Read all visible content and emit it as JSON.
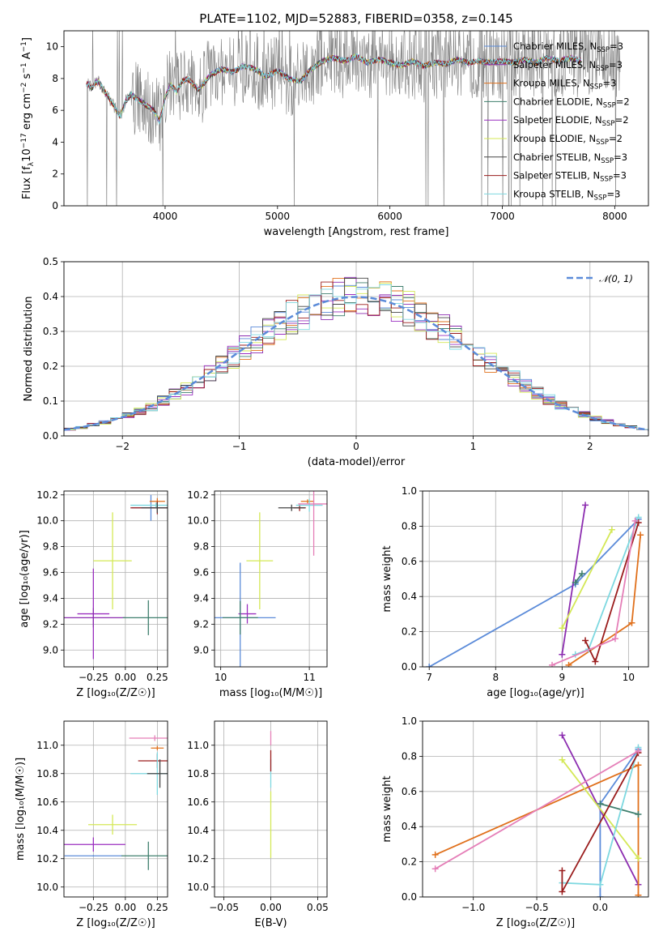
{
  "title": "PLATE=1102, MJD=52883, FIBERID=0358, z=0.145",
  "colors": {
    "Chabrier MILES": "#5b8bd9",
    "Salpeter MILES": "#8c2db0",
    "Kroupa MILES": "#e0701c",
    "Chabrier ELODIE": "#3f7f6e",
    "Salpeter ELODIE": "#9b30c0",
    "Kroupa ELODIE": "#d4e856",
    "Chabrier STELIB": "#444444",
    "Salpeter STELIB": "#9a1c1c",
    "Kroupa STELIB": "#7dd8e0",
    "data": "#808080",
    "normal": "#5b8bd9",
    "extra_pink": "#e57fb8"
  },
  "legend_entries": [
    {
      "name": "Chabrier MILES",
      "label": "Chabrier MILES, N",
      "sub": "SSP",
      "tail": "=3"
    },
    {
      "name": "Salpeter MILES",
      "label": "Salpeter MILES, N",
      "sub": "SSP",
      "tail": "=3"
    },
    {
      "name": "Kroupa MILES",
      "label": "Kroupa MILES, N",
      "sub": "SSP",
      "tail": "=3"
    },
    {
      "name": "Chabrier ELODIE",
      "label": "Chabrier ELODIE, N",
      "sub": "SSP",
      "tail": "=2"
    },
    {
      "name": "Salpeter ELODIE",
      "label": "Salpeter ELODIE, N",
      "sub": "SSP",
      "tail": "=2"
    },
    {
      "name": "Kroupa ELODIE",
      "label": "Kroupa ELODIE, N",
      "sub": "SSP",
      "tail": "=2"
    },
    {
      "name": "Chabrier STELIB",
      "label": "Chabrier STELIB, N",
      "sub": "SSP",
      "tail": "=3"
    },
    {
      "name": "Salpeter STELIB",
      "label": "Salpeter STELIB, N",
      "sub": "SSP",
      "tail": "=3"
    },
    {
      "name": "Kroupa STELIB",
      "label": "Kroupa STELIB, N",
      "sub": "SSP",
      "tail": "=3"
    }
  ],
  "chart_data": [
    {
      "id": "spectrum",
      "type": "line",
      "xlabel": "wavelength [Angstrom, rest frame]",
      "ylabel_main": "Flux [f",
      "ylabel_sub": "λ",
      "ylabel_rest": "10",
      "ylabel_sup1": "−17",
      "ylabel_mid": " erg cm",
      "ylabel_sup2": "−2",
      "ylabel_mid2": " s",
      "ylabel_sup3": "−1",
      "ylabel_end": " A",
      "ylabel_sup4": "−1",
      "ylabel_close": "]",
      "xlim": [
        3100,
        8300
      ],
      "ylim": [
        0,
        11
      ],
      "xticks": [
        4000,
        5000,
        6000,
        7000,
        8000
      ],
      "yticks": [
        0,
        2,
        4,
        6,
        8,
        10
      ],
      "model_continuum": [
        [
          3300,
          7.7
        ],
        [
          3350,
          7.4
        ],
        [
          3400,
          7.9
        ],
        [
          3450,
          7.3
        ],
        [
          3500,
          6.8
        ],
        [
          3550,
          6.2
        ],
        [
          3600,
          5.6
        ],
        [
          3650,
          6.6
        ],
        [
          3700,
          7.0
        ],
        [
          3750,
          6.7
        ],
        [
          3800,
          6.5
        ],
        [
          3850,
          6.2
        ],
        [
          3900,
          6.0
        ],
        [
          3950,
          5.3
        ],
        [
          4000,
          6.8
        ],
        [
          4050,
          7.6
        ],
        [
          4100,
          7.2
        ],
        [
          4150,
          7.8
        ],
        [
          4200,
          8.0
        ],
        [
          4300,
          7.3
        ],
        [
          4400,
          8.2
        ],
        [
          4500,
          8.6
        ],
        [
          4600,
          8.4
        ],
        [
          4700,
          8.8
        ],
        [
          4800,
          8.6
        ],
        [
          4900,
          8.1
        ],
        [
          5000,
          8.5
        ],
        [
          5100,
          8.0
        ],
        [
          5200,
          7.8
        ],
        [
          5300,
          8.6
        ],
        [
          5400,
          9.1
        ],
        [
          5500,
          9.3
        ],
        [
          5600,
          9.1
        ],
        [
          5700,
          9.4
        ],
        [
          5800,
          9.0
        ],
        [
          5900,
          9.2
        ],
        [
          6000,
          9.0
        ],
        [
          6100,
          8.8
        ],
        [
          6200,
          9.1
        ],
        [
          6300,
          8.8
        ],
        [
          6400,
          9.0
        ],
        [
          6500,
          8.9
        ],
        [
          6600,
          9.2
        ],
        [
          6700,
          9.0
        ],
        [
          6800,
          9.1
        ],
        [
          6900,
          9.0
        ],
        [
          7000,
          9.1
        ],
        [
          7100,
          9.0
        ],
        [
          7200,
          9.2
        ],
        [
          7300,
          9.0
        ],
        [
          7400,
          9.3
        ],
        [
          7500,
          9.1
        ],
        [
          7600,
          9.3
        ],
        [
          7700,
          9.1
        ],
        [
          7800,
          9.5
        ],
        [
          7900,
          9.8
        ],
        [
          8000,
          8.8
        ],
        [
          8050,
          8.5
        ]
      ]
    },
    {
      "id": "residuals",
      "type": "line",
      "xlabel": "(data-model)/error",
      "ylabel": "Normed distribution",
      "xlim": [
        -2.5,
        2.5
      ],
      "ylim": [
        0,
        0.5
      ],
      "xticks": [
        -2,
        -1,
        0,
        1,
        2
      ],
      "yticks": [
        0.0,
        0.1,
        0.2,
        0.3,
        0.4,
        0.5
      ],
      "legend": "𝒩(0, 1)",
      "normal_mean": 0,
      "normal_sigma": 1
    },
    {
      "id": "age_vs_Z",
      "type": "scatter",
      "xlabel": "Z [log₁₀(Z/Z☉)]",
      "ylabel": "age  [log₁₀(age/yr)]",
      "xlim": [
        -0.48,
        0.33
      ],
      "ylim": [
        8.87,
        10.23
      ],
      "xticks": [
        -0.25,
        0.0,
        0.25
      ],
      "xticklabels": [
        "−0.25",
        "0.00",
        "0.25"
      ],
      "yticks": [
        9.0,
        9.2,
        9.4,
        9.6,
        9.8,
        10.0,
        10.2
      ],
      "points": [
        {
          "c": "Kroupa ELODIE",
          "x": -0.1,
          "y": 9.69,
          "xe": 0.3,
          "ye": 0.75
        },
        {
          "c": "Salpeter ELODIE",
          "x": -0.25,
          "y": 9.28,
          "xe": 0.25,
          "ye": 0.7
        },
        {
          "c": "Salpeter MILES",
          "x": -0.25,
          "y": 9.25,
          "xe": 0.5,
          "ye": 0.15
        },
        {
          "c": "Chabrier ELODIE",
          "x": 0.18,
          "y": 9.25,
          "xe": 0.4,
          "ye": 0.27
        },
        {
          "c": "Chabrier MILES",
          "x": 0.2,
          "y": 10.1,
          "xe": 0.3,
          "ye": 0.2
        },
        {
          "c": "Kroupa MILES",
          "x": 0.25,
          "y": 10.15,
          "xe": 0.12,
          "ye": 0.05
        },
        {
          "c": "Salpeter STELIB",
          "x": 0.25,
          "y": 10.1,
          "xe": 0.42,
          "ye": 0.1
        },
        {
          "c": "Kroupa STELIB",
          "x": 0.24,
          "y": 10.12,
          "xe": 0.4,
          "ye": 0.04
        },
        {
          "c": "Chabrier STELIB",
          "x": 0.25,
          "y": 10.1,
          "xe": 0.25,
          "ye": 0.08
        }
      ]
    },
    {
      "id": "age_vs_mass",
      "type": "scatter",
      "xlabel": "mass [log₁₀(M/M☉)]",
      "xlim": [
        9.93,
        11.2
      ],
      "ylim": [
        8.87,
        10.23
      ],
      "xticks": [
        10,
        11
      ],
      "yticks": [
        9.0,
        9.2,
        9.4,
        9.6,
        9.8,
        10.0,
        10.2
      ],
      "points": [
        {
          "c": "Kroupa ELODIE",
          "x": 10.44,
          "y": 9.69,
          "xe": 0.3,
          "ye": 0.75
        },
        {
          "c": "Salpeter ELODIE",
          "x": 10.3,
          "y": 9.28,
          "xe": 0.2,
          "ye": 0.15
        },
        {
          "c": "Chabrier MILES",
          "x": 10.22,
          "y": 9.25,
          "xe": 0.8,
          "ye": 0.85
        },
        {
          "c": "Chabrier ELODIE",
          "x": 10.22,
          "y": 9.25,
          "xe": 0.4,
          "ye": 0.26
        },
        {
          "c": "Kroupa MILES",
          "x": 10.98,
          "y": 10.15,
          "xe": 0.15,
          "ye": 0.03
        },
        {
          "c": "Salpeter STELIB",
          "x": 10.89,
          "y": 10.1,
          "xe": 0.14,
          "ye": 0.05
        },
        {
          "c": "Kroupa STELIB",
          "x": 11.0,
          "y": 10.12,
          "xe": 0.3,
          "ye": 0.1
        },
        {
          "c": "Chabrier STELIB",
          "x": 10.8,
          "y": 10.1,
          "xe": 0.3,
          "ye": 0.05
        },
        {
          "c": "extra_pink",
          "x": 11.05,
          "y": 10.13,
          "xe": 0.35,
          "ye": 0.8
        }
      ]
    },
    {
      "id": "weight_vs_age",
      "type": "line",
      "xlabel": "age  [log₁₀(age/yr)]",
      "ylabel": "mass weight",
      "xlim": [
        6.9,
        10.3
      ],
      "ylim": [
        0,
        1
      ],
      "xticks": [
        7,
        8,
        9,
        10
      ],
      "yticks": [
        0.0,
        0.2,
        0.4,
        0.6,
        0.8,
        1.0
      ],
      "series": [
        {
          "c": "Chabrier MILES",
          "points": [
            [
              7.0,
              0.0
            ],
            [
              9.2,
              0.47
            ],
            [
              10.15,
              0.84
            ]
          ]
        },
        {
          "c": "Salpeter MILES",
          "points": [
            [
              9.0,
              0.07
            ],
            [
              9.35,
              0.92
            ]
          ]
        },
        {
          "c": "Kroupa MILES",
          "points": [
            [
              9.1,
              0.01
            ],
            [
              10.05,
              0.25
            ],
            [
              10.18,
              0.75
            ]
          ]
        },
        {
          "c": "Chabrier ELODIE",
          "points": [
            [
              9.2,
              0.48
            ],
            [
              9.3,
              0.53
            ]
          ]
        },
        {
          "c": "Kroupa ELODIE",
          "points": [
            [
              9.0,
              0.22
            ],
            [
              9.75,
              0.78
            ]
          ]
        },
        {
          "c": "Kroupa STELIB",
          "points": [
            [
              9.2,
              0.07
            ],
            [
              9.4,
              0.1
            ],
            [
              10.15,
              0.85
            ]
          ]
        },
        {
          "c": "Salpeter STELIB",
          "points": [
            [
              9.35,
              0.15
            ],
            [
              9.5,
              0.03
            ],
            [
              10.15,
              0.82
            ]
          ]
        },
        {
          "c": "extra_pink",
          "points": [
            [
              8.85,
              0.01
            ],
            [
              9.8,
              0.16
            ],
            [
              10.1,
              0.83
            ]
          ]
        }
      ]
    },
    {
      "id": "mass_vs_Z",
      "type": "scatter",
      "xlabel": "Z [log₁₀(Z/Z☉)]",
      "ylabel": "mass [log₁₀(M/M☉)]",
      "xlim": [
        -0.48,
        0.33
      ],
      "ylim": [
        9.93,
        11.17
      ],
      "xticks": [
        -0.25,
        0.0,
        0.25
      ],
      "xticklabels": [
        "−0.25",
        "0.00",
        "0.25"
      ],
      "yticks": [
        10.0,
        10.2,
        10.4,
        10.6,
        10.8,
        11.0
      ],
      "points": [
        {
          "c": "Kroupa ELODIE",
          "x": -0.1,
          "y": 10.44,
          "xe": 0.38,
          "ye": 0.14
        },
        {
          "c": "Salpeter ELODIE",
          "x": -0.25,
          "y": 10.3,
          "xe": 0.5,
          "ye": 0.1
        },
        {
          "c": "Chabrier MILES",
          "x": -0.25,
          "y": 10.22,
          "xe": 0.45,
          "ye": 0.01
        },
        {
          "c": "Chabrier ELODIE",
          "x": 0.18,
          "y": 10.22,
          "xe": 0.42,
          "ye": 0.2
        },
        {
          "c": "Salpeter STELIB",
          "x": 0.25,
          "y": 10.89,
          "xe": 0.3,
          "ye": 0.1
        },
        {
          "c": "Kroupa MILES",
          "x": 0.25,
          "y": 10.98,
          "xe": 0.1,
          "ye": 0.03
        },
        {
          "c": "extra_pink",
          "x": 0.23,
          "y": 11.05,
          "xe": 0.4,
          "ye": 0.04
        },
        {
          "c": "Kroupa STELIB",
          "x": 0.25,
          "y": 10.8,
          "xe": 0.42,
          "ye": 0.3
        },
        {
          "c": "Chabrier STELIB",
          "x": 0.27,
          "y": 10.8,
          "xe": 0.2,
          "ye": 0.2
        }
      ]
    },
    {
      "id": "mass_vs_EBV",
      "type": "scatter",
      "xlabel": "E(B-V)",
      "xlim": [
        -0.06,
        0.06
      ],
      "ylim": [
        9.93,
        11.17
      ],
      "xticks": [
        -0.05,
        0.0,
        0.05
      ],
      "xticklabels": [
        "−0.05",
        "0.00",
        "0.05"
      ],
      "yticks": [
        10.0,
        10.2,
        10.4,
        10.6,
        10.8,
        11.0
      ],
      "points": [
        {
          "c": "Kroupa ELODIE",
          "x": 0,
          "y": 10.44,
          "xe": 0,
          "ye": 0.47
        },
        {
          "c": "Kroupa STELIB",
          "x": 0,
          "y": 10.8,
          "xe": 0,
          "ye": 0.2
        },
        {
          "c": "Salpeter STELIB",
          "x": 0,
          "y": 10.89,
          "xe": 0,
          "ye": 0.15
        },
        {
          "c": "extra_pink",
          "x": 0,
          "y": 11.05,
          "xe": 0,
          "ye": 0.1
        }
      ]
    },
    {
      "id": "weight_vs_Z",
      "type": "line",
      "xlabel": "Z [log₁₀(Z/Z☉)]",
      "ylabel": "mass weight",
      "xlim": [
        -1.4,
        0.38
      ],
      "ylim": [
        0,
        1
      ],
      "xticks": [
        -1.0,
        -0.5,
        0.0
      ],
      "xticklabels": [
        "−1.0",
        "−0.5",
        "0.0"
      ],
      "yticks": [
        0.0,
        0.2,
        0.4,
        0.6,
        0.8,
        1.0
      ],
      "series": [
        {
          "c": "Chabrier MILES",
          "points": [
            [
              0.0,
              0.0
            ],
            [
              0.0,
              0.53
            ],
            [
              0.3,
              0.84
            ]
          ]
        },
        {
          "c": "Salpeter MILES",
          "points": [
            [
              -0.3,
              0.92
            ],
            [
              0.3,
              0.07
            ]
          ]
        },
        {
          "c": "Kroupa MILES",
          "points": [
            [
              -1.3,
              0.24
            ],
            [
              0.3,
              0.75
            ],
            [
              0.3,
              0.01
            ]
          ]
        },
        {
          "c": "Chabrier ELODIE",
          "points": [
            [
              0.0,
              0.53
            ],
            [
              0.3,
              0.47
            ]
          ]
        },
        {
          "c": "Kroupa ELODIE",
          "points": [
            [
              -0.3,
              0.78
            ],
            [
              0.3,
              0.22
            ]
          ]
        },
        {
          "c": "Kroupa STELIB",
          "points": [
            [
              -0.3,
              0.08
            ],
            [
              0.0,
              0.07
            ],
            [
              0.3,
              0.85
            ]
          ]
        },
        {
          "c": "Salpeter STELIB",
          "points": [
            [
              -0.3,
              0.15
            ],
            [
              -0.3,
              0.03
            ],
            [
              0.3,
              0.82
            ]
          ]
        },
        {
          "c": "extra_pink",
          "points": [
            [
              -1.3,
              0.16
            ],
            [
              0.3,
              0.83
            ]
          ]
        }
      ]
    }
  ]
}
